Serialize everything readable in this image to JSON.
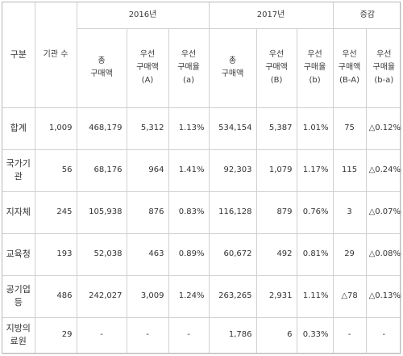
{
  "header": {
    "category": "구분",
    "org_count": "기관 수",
    "year_2016": "2016년",
    "year_2017": "2017년",
    "change": "증감",
    "total_purchase": "총\n구매액",
    "priority_amount_a": "우선\n구매액\n(A)",
    "priority_rate_a": "우선\n구매율\n(a)",
    "priority_amount_b": "우선\n구매액\n(B)",
    "priority_rate_b": "우선\n구매율\n(b)",
    "priority_amount_diff": "우선\n구매액\n(B-A)",
    "priority_rate_diff": "우선\n구매율\n(b-a)"
  },
  "rows": [
    {
      "label": "합계",
      "orgs": "1,009",
      "total16": "468,179",
      "amt16": "5,312",
      "rate16": "1.13%",
      "total17": "534,154",
      "amt17": "5,387",
      "rate17": "1.01%",
      "amt_diff": "75",
      "rate_diff": "△0.12%p"
    },
    {
      "label": "국가기\n관",
      "orgs": "56",
      "total16": "68,176",
      "amt16": "964",
      "rate16": "1.41%",
      "total17": "92,303",
      "amt17": "1,079",
      "rate17": "1.17%",
      "amt_diff": "115",
      "rate_diff": "△0.24%p"
    },
    {
      "label": "지자체",
      "orgs": "245",
      "total16": "105,938",
      "amt16": "876",
      "rate16": "0.83%",
      "total17": "116,128",
      "amt17": "879",
      "rate17": "0.76%",
      "amt_diff": "3",
      "rate_diff": "△0.07%p"
    },
    {
      "label": "교육청",
      "orgs": "193",
      "total16": "52,038",
      "amt16": "463",
      "rate16": "0.89%",
      "total17": "60,672",
      "amt17": "492",
      "rate17": "0.81%",
      "amt_diff": "29",
      "rate_diff": "△0.08%p"
    },
    {
      "label": "공기업\n등",
      "orgs": "486",
      "total16": "242,027",
      "amt16": "3,009",
      "rate16": "1.24%",
      "total17": "263,265",
      "amt17": "2,931",
      "rate17": "1.11%",
      "amt_diff": "△78",
      "rate_diff": "△0.13%p"
    },
    {
      "label": "지방의\n료원",
      "orgs": "29",
      "total16": "-",
      "amt16": "-",
      "rate16": "-",
      "total17": "1,786",
      "amt17": "6",
      "rate17": "0.33%",
      "amt_diff": "-",
      "rate_diff": "-"
    }
  ]
}
